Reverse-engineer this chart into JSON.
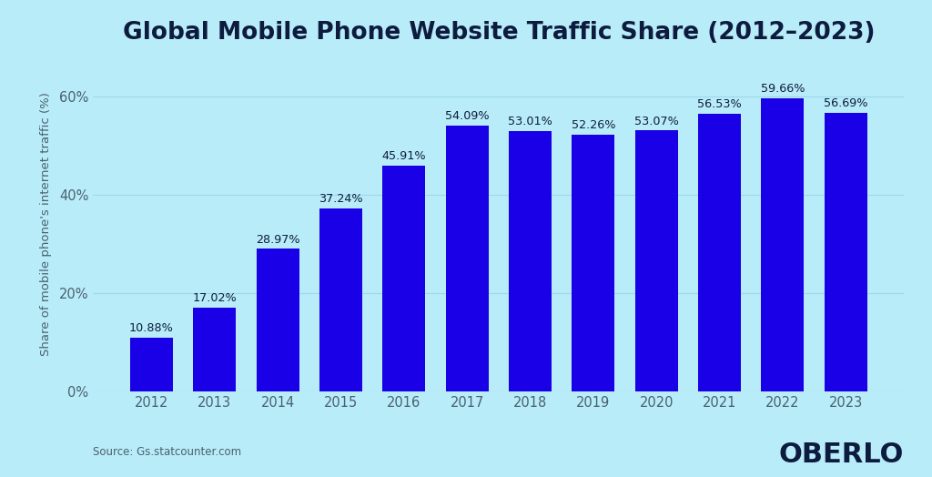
{
  "title": "Global Mobile Phone Website Traffic Share (2012–2023)",
  "years": [
    2012,
    2013,
    2014,
    2015,
    2016,
    2017,
    2018,
    2019,
    2020,
    2021,
    2022,
    2023
  ],
  "values": [
    10.88,
    17.02,
    28.97,
    37.24,
    45.91,
    54.09,
    53.01,
    52.26,
    53.07,
    56.53,
    59.66,
    56.69
  ],
  "labels": [
    "10.88%",
    "17.02%",
    "28.97%",
    "37.24%",
    "45.91%",
    "54.09%",
    "53.01%",
    "52.26%",
    "53.07%",
    "56.53%",
    "59.66%",
    "56.69%"
  ],
  "bar_color": "#1a00e6",
  "background_color": "#b8ecf8",
  "ylabel": "Share of mobile phone's internet traffic (%)",
  "yticks": [
    0,
    20,
    40,
    60
  ],
  "ytick_labels": [
    "0%",
    "20%",
    "40%",
    "60%"
  ],
  "ylim": [
    0,
    68
  ],
  "source_text": "Source: Gs.statcounter.com",
  "brand_text": "OBERLO",
  "title_fontsize": 19,
  "label_fontsize": 9.2,
  "ylabel_fontsize": 9.5,
  "ytick_fontsize": 10.5,
  "xtick_fontsize": 10.5,
  "grid_color": "#9fd8ea",
  "bar_width": 0.68,
  "text_color": "#0d1b3e",
  "source_color": "#4a6070",
  "tick_color": "#4a6070"
}
